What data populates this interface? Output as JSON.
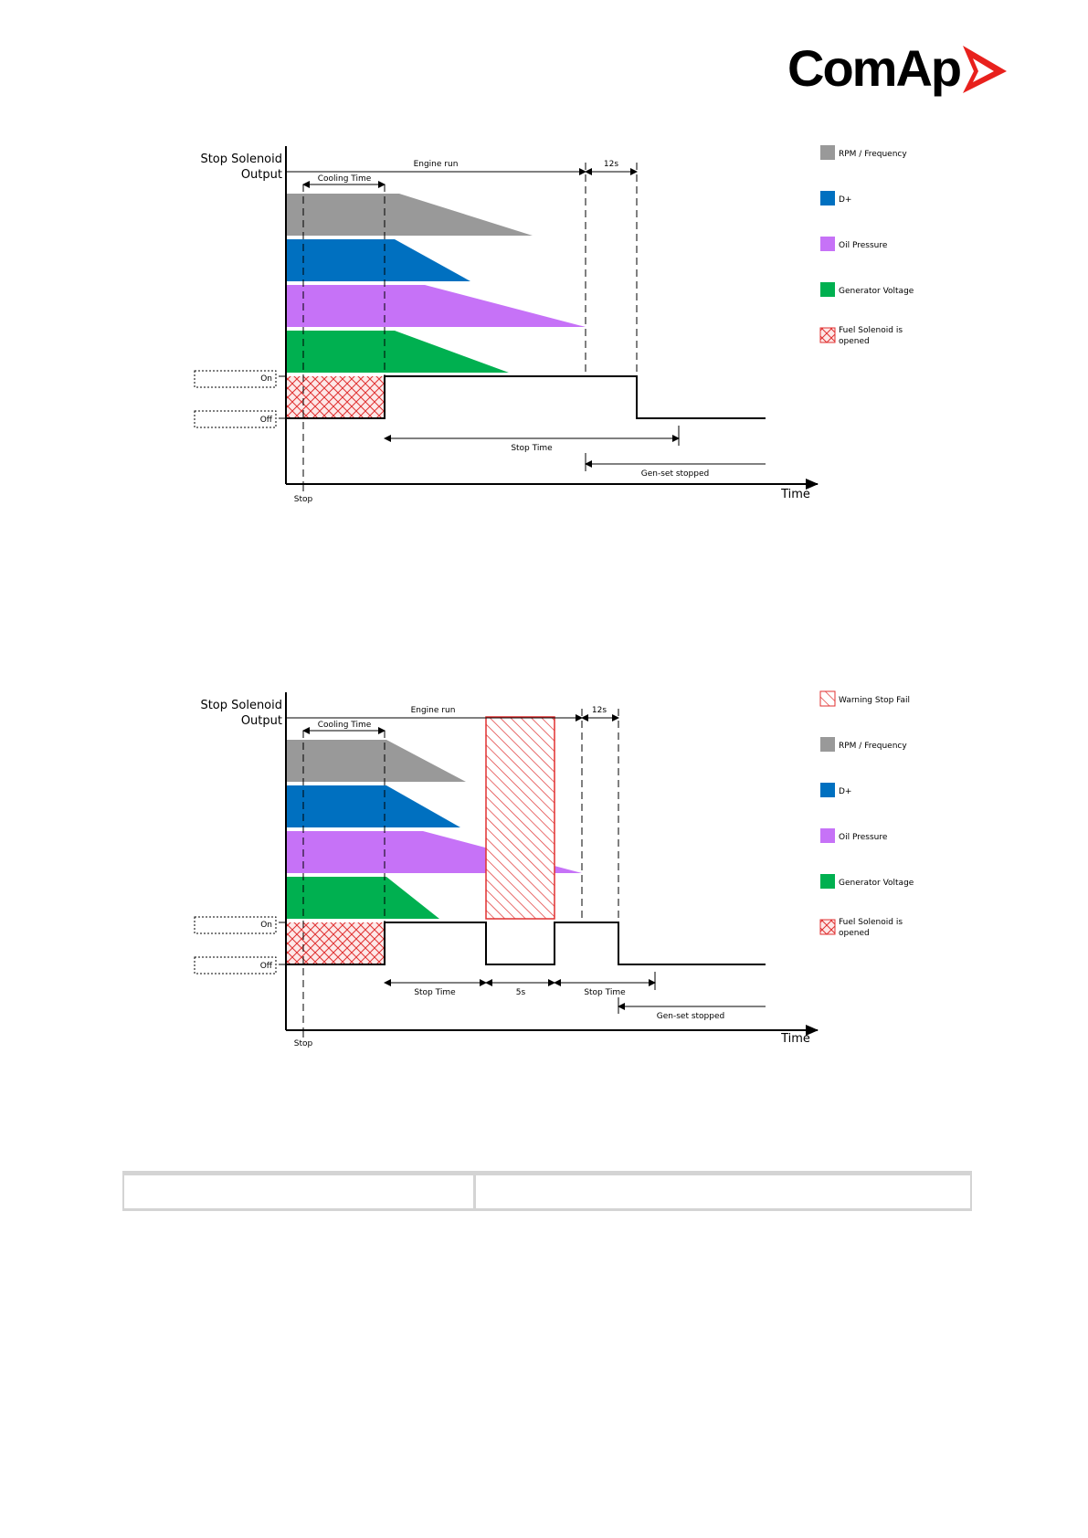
{
  "logo": {
    "text": "ComAp"
  },
  "colors": {
    "rpm": "#999999",
    "dplus": "#0070c0",
    "oil": "#c672f7",
    "genv": "#00b050",
    "hatch": "#e03030"
  },
  "diagram1": {
    "ylabel_line1": "Stop Solenoid",
    "ylabel_line2": "Output",
    "on_label": "On",
    "off_label": "Off",
    "engine_run": "Engine run",
    "cooling_time": "Cooling Time",
    "t12s": "12s",
    "stop_time": "Stop Time",
    "genset_stopped": "Gen-set stopped",
    "stop": "Stop",
    "time": "Time",
    "legend": [
      {
        "label": "RPM / Frequency",
        "icon": "gray-square"
      },
      {
        "label": "D+",
        "icon": "blue-square"
      },
      {
        "label": "Oil Pressure",
        "icon": "violet-square"
      },
      {
        "label": "Generator Voltage",
        "icon": "green-square"
      },
      {
        "label": "Fuel Solenoid is",
        "label2": "opened",
        "icon": "crosshatch-square"
      }
    ]
  },
  "diagram2": {
    "ylabel_line1": "Stop Solenoid",
    "ylabel_line2": "Output",
    "on_label": "On",
    "off_label": "Off",
    "engine_run": "Engine run",
    "cooling_time": "Cooling Time",
    "t12s": "12s",
    "stop_time_1": "Stop Time",
    "t5s": "5s",
    "stop_time_2": "Stop Time",
    "genset_stopped": "Gen-set stopped",
    "stop": "Stop",
    "time": "Time",
    "legend": [
      {
        "label": "Warning Stop Fail",
        "icon": "diagonal-hatch-square"
      },
      {
        "label": "RPM / Frequency",
        "icon": "gray-square"
      },
      {
        "label": "D+",
        "icon": "blue-square"
      },
      {
        "label": "Oil Pressure",
        "icon": "violet-square"
      },
      {
        "label": "Generator Voltage",
        "icon": "green-square"
      },
      {
        "label": "Fuel Solenoid is",
        "label2": "opened",
        "icon": "crosshatch-square"
      }
    ]
  }
}
